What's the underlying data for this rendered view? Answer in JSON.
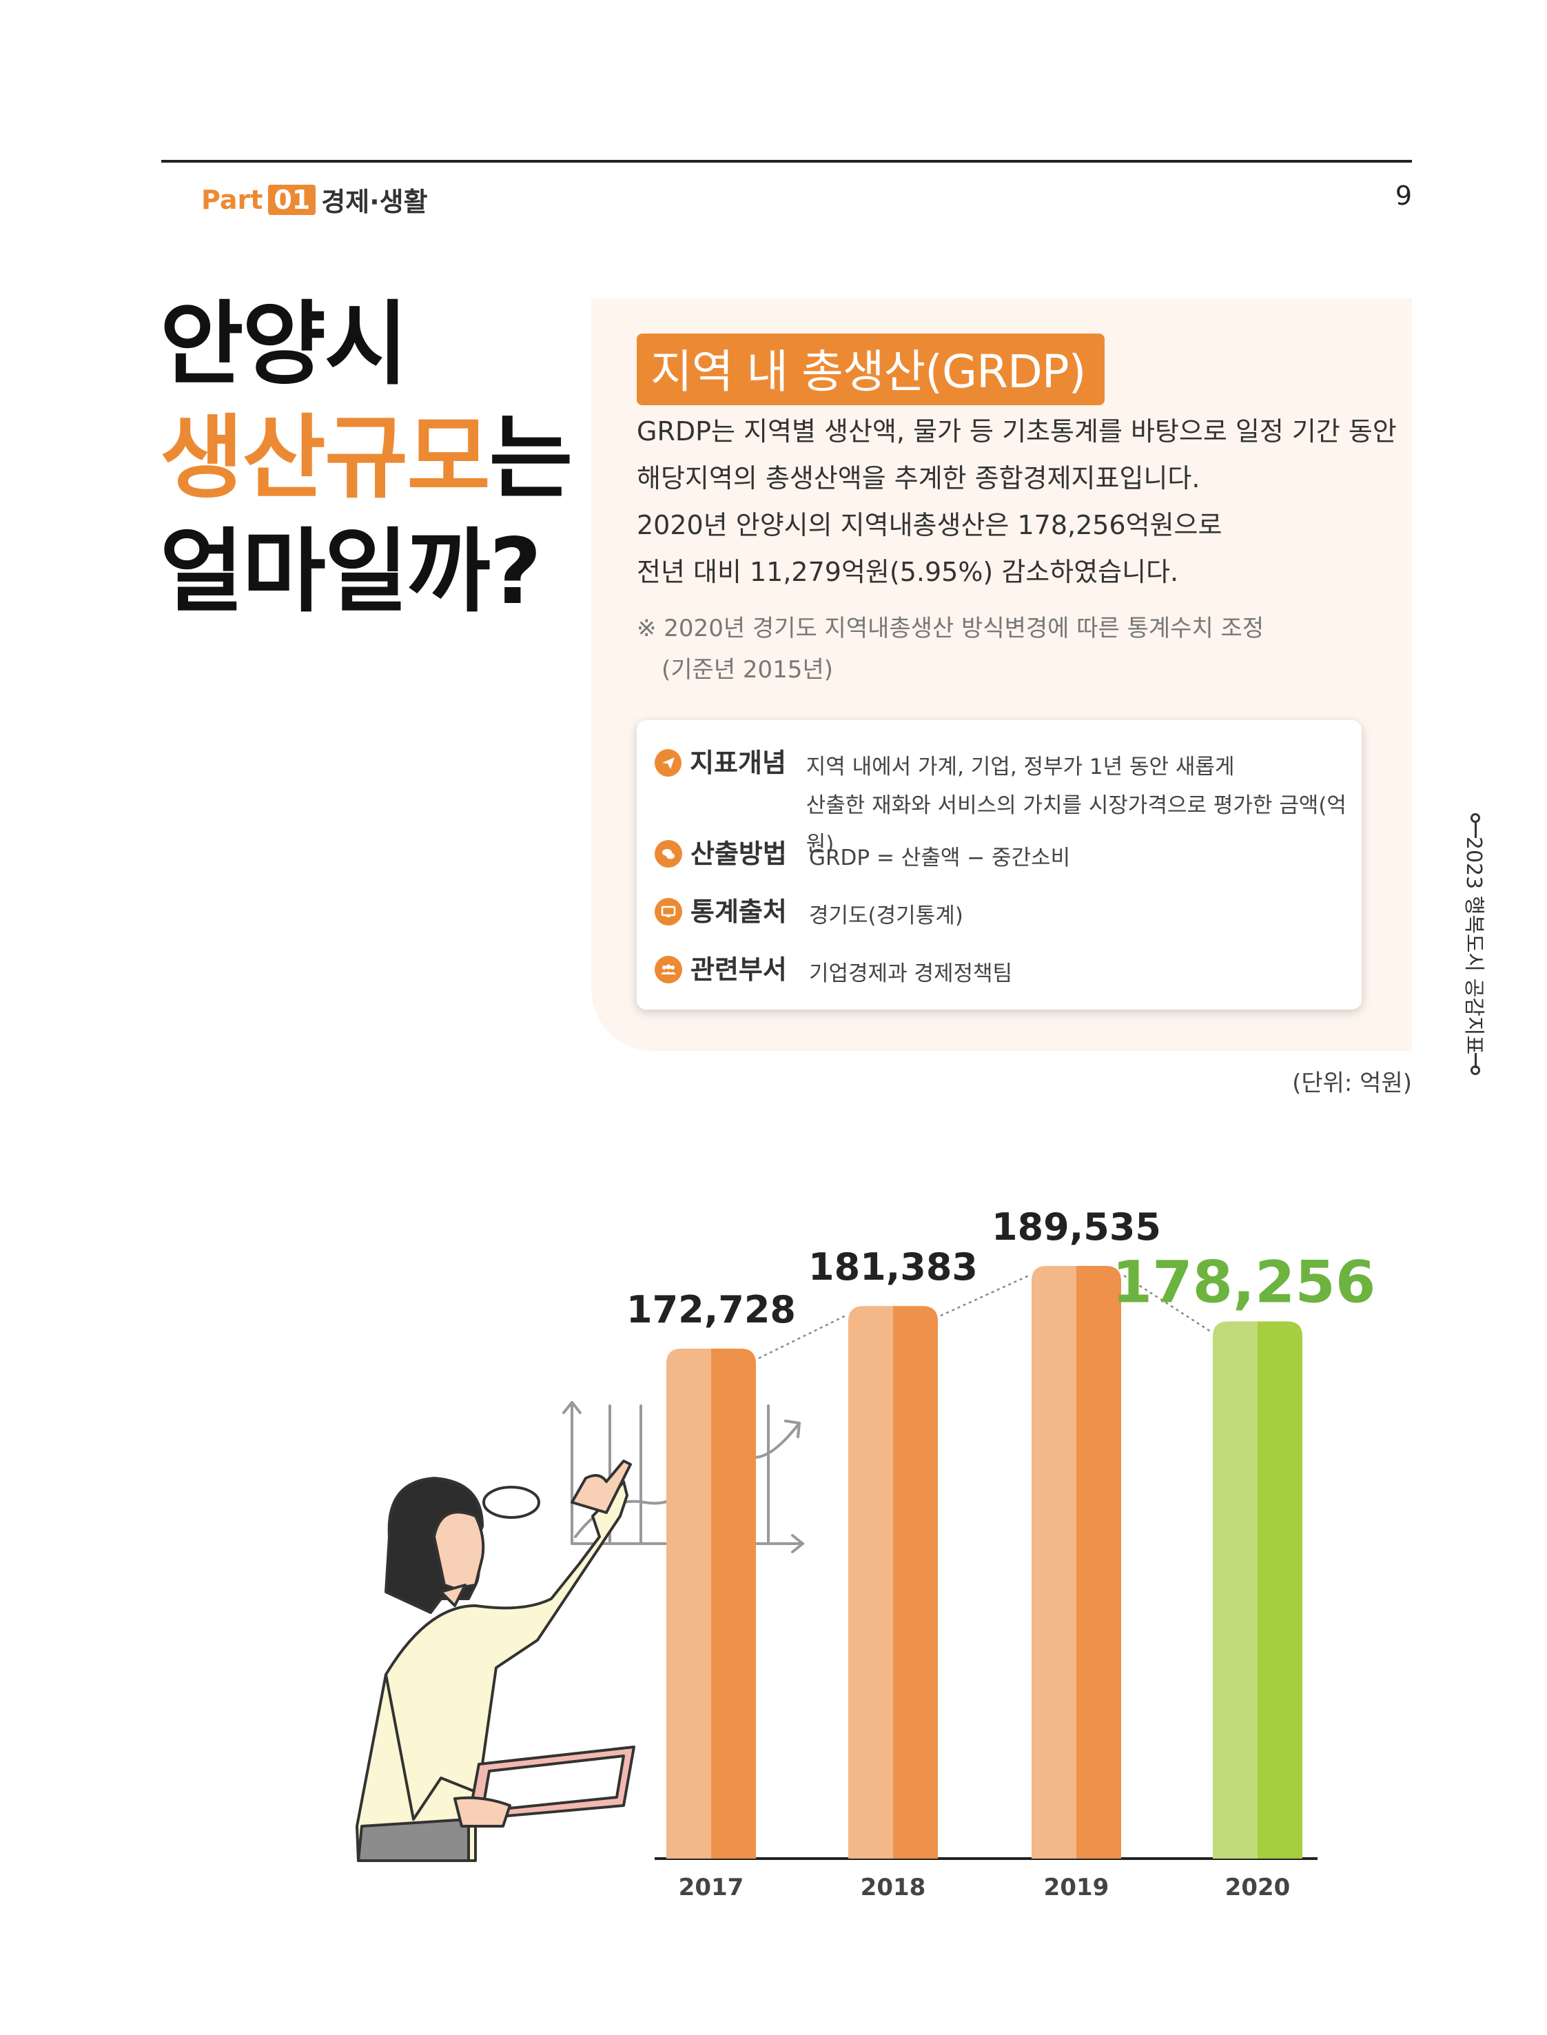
{
  "header": {
    "part_label": "Part",
    "part_number": "01",
    "section": "경제·생활",
    "page_number": "9"
  },
  "title": {
    "line1": "안양시",
    "line2_highlight": "생산규모",
    "line2_suffix": "는",
    "line3": "얼마일까?"
  },
  "info": {
    "heading": "지역 내 총생산(GRDP)",
    "description": [
      "GRDP는 지역별 생산액, 물가 등 기초통계를 바탕으로 일정 기간 동안",
      "해당지역의 총생산액을 추계한 종합경제지표입니다.",
      "2020년 안양시의 지역내총생산은 178,256억원으로",
      "전년 대비 11,279억원(5.95%) 감소하였습니다."
    ],
    "note_line1": "※ 2020년 경기도 지역내총생산 방식변경에 따른 통계수치 조정",
    "note_line2": "(기준년 2015년)"
  },
  "details": [
    {
      "icon": "paper-plane-icon",
      "label": "지표개념",
      "value_line1": "지역 내에서 가계, 기업, 정부가 1년 동안 새롭게",
      "value_line2": "산출한 재화와 서비스의 가치를 시장가격으로 평가한 금액(억원)"
    },
    {
      "icon": "chat-bubble-icon",
      "label": "산출방법",
      "value_line1": "GRDP = 산출액 − 중간소비",
      "value_line2": ""
    },
    {
      "icon": "monitor-icon",
      "label": "통계출처",
      "value_line1": "경기도(경기통계)",
      "value_line2": ""
    },
    {
      "icon": "people-icon",
      "label": "관련부서",
      "value_line1": "기업경제과 경제정책팀",
      "value_line2": ""
    }
  ],
  "sidebar": {
    "text": "2023 행복도시 공감지표"
  },
  "unit_label": "(단위: 억원)",
  "chart_data": {
    "type": "bar",
    "categories": [
      "2017",
      "2018",
      "2019",
      "2020"
    ],
    "values": [
      172728,
      181383,
      189535,
      178256
    ],
    "value_labels": [
      "172,728",
      "181,383",
      "189,535",
      "178,256"
    ],
    "title": "",
    "xlabel": "",
    "ylabel": "",
    "highlight_index": 3,
    "colors": {
      "bar_light": "#f4b787",
      "bar_dark": "#ee914a",
      "highlight_light": "#c1da7a",
      "highlight_dark": "#a7cd40",
      "highlight_label": "#6db33f"
    }
  }
}
